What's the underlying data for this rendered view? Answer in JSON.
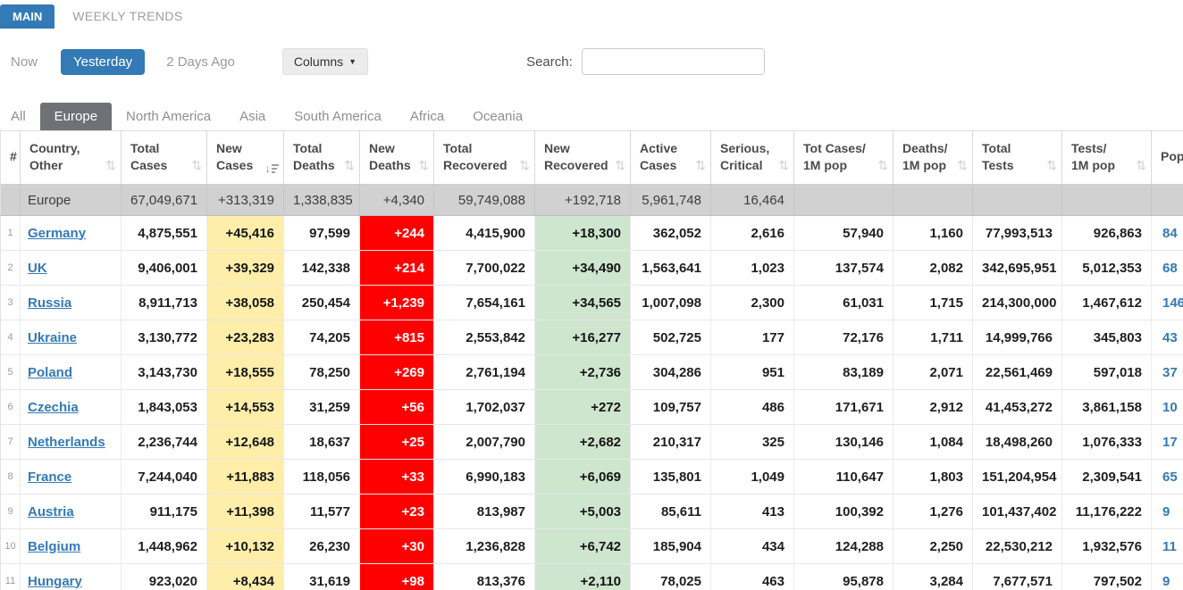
{
  "colors": {
    "accent_blue": "#337ab7",
    "tab_dark": "#6e7276",
    "new_cases_bg": "#ffeeaa",
    "new_deaths_bg": "#ff0000",
    "new_recovered_bg": "#cee5ce",
    "totals_row_bg": "#d1d1d1"
  },
  "main_tabs": {
    "main": "MAIN",
    "weekly": "WEEKLY TRENDS"
  },
  "controls": {
    "now": "Now",
    "yesterday": "Yesterday",
    "two_days_ago": "2 Days Ago",
    "columns_button": "Columns",
    "search_label": "Search:",
    "search_value": "",
    "search_placeholder": ""
  },
  "region_tabs": [
    {
      "label": "All",
      "active": false
    },
    {
      "label": "Europe",
      "active": true
    },
    {
      "label": "North America",
      "active": false
    },
    {
      "label": "Asia",
      "active": false
    },
    {
      "label": "South America",
      "active": false
    },
    {
      "label": "Africa",
      "active": false
    },
    {
      "label": "Oceania",
      "active": false
    }
  ],
  "table": {
    "col_keys": [
      "rank",
      "country",
      "total_cases",
      "new_cases",
      "total_deaths",
      "new_deaths",
      "total_recovered",
      "new_recovered",
      "active_cases",
      "serious_critical",
      "cases_per_1m",
      "deaths_per_1m",
      "total_tests",
      "tests_per_1m",
      "pop"
    ],
    "columns": [
      {
        "l1": "",
        "l2": "#",
        "sort": "none"
      },
      {
        "l1": "Country,",
        "l2": "Other",
        "sort": "both"
      },
      {
        "l1": "Total",
        "l2": "Cases",
        "sort": "both"
      },
      {
        "l1": "New",
        "l2": "Cases",
        "sort": "desc"
      },
      {
        "l1": "Total",
        "l2": "Deaths",
        "sort": "both"
      },
      {
        "l1": "New",
        "l2": "Deaths",
        "sort": "both"
      },
      {
        "l1": "Total",
        "l2": "Recovered",
        "sort": "both"
      },
      {
        "l1": "New",
        "l2": "Recovered",
        "sort": "both"
      },
      {
        "l1": "Active",
        "l2": "Cases",
        "sort": "both"
      },
      {
        "l1": "Serious,",
        "l2": "Critical",
        "sort": "both"
      },
      {
        "l1": "Tot Cases/",
        "l2": "1M pop",
        "sort": "both"
      },
      {
        "l1": "Deaths/",
        "l2": "1M pop",
        "sort": "both"
      },
      {
        "l1": "Total",
        "l2": "Tests",
        "sort": "both"
      },
      {
        "l1": "Tests/",
        "l2": "1M pop",
        "sort": "both"
      },
      {
        "l1": "",
        "l2": "Pop",
        "sort": "none"
      }
    ],
    "totals": {
      "rank": "",
      "country": "Europe",
      "total_cases": "67,049,671",
      "new_cases": "+313,319",
      "total_deaths": "1,338,835",
      "new_deaths": "+4,340",
      "total_recovered": "59,749,088",
      "new_recovered": "+192,718",
      "active_cases": "5,961,748",
      "serious_critical": "16,464",
      "cases_per_1m": "",
      "deaths_per_1m": "",
      "total_tests": "",
      "tests_per_1m": "",
      "pop": ""
    },
    "rows": [
      {
        "rank": "1",
        "country": "Germany",
        "total_cases": "4,875,551",
        "new_cases": "+45,416",
        "total_deaths": "97,599",
        "new_deaths": "+244",
        "total_recovered": "4,415,900",
        "new_recovered": "+18,300",
        "active_cases": "362,052",
        "serious_critical": "2,616",
        "cases_per_1m": "57,940",
        "deaths_per_1m": "1,160",
        "total_tests": "77,993,513",
        "tests_per_1m": "926,863",
        "pop": "84"
      },
      {
        "rank": "2",
        "country": "UK",
        "total_cases": "9,406,001",
        "new_cases": "+39,329",
        "total_deaths": "142,338",
        "new_deaths": "+214",
        "total_recovered": "7,700,022",
        "new_recovered": "+34,490",
        "active_cases": "1,563,641",
        "serious_critical": "1,023",
        "cases_per_1m": "137,574",
        "deaths_per_1m": "2,082",
        "total_tests": "342,695,951",
        "tests_per_1m": "5,012,353",
        "pop": "68"
      },
      {
        "rank": "3",
        "country": "Russia",
        "total_cases": "8,911,713",
        "new_cases": "+38,058",
        "total_deaths": "250,454",
        "new_deaths": "+1,239",
        "total_recovered": "7,654,161",
        "new_recovered": "+34,565",
        "active_cases": "1,007,098",
        "serious_critical": "2,300",
        "cases_per_1m": "61,031",
        "deaths_per_1m": "1,715",
        "total_tests": "214,300,000",
        "tests_per_1m": "1,467,612",
        "pop": "146"
      },
      {
        "rank": "4",
        "country": "Ukraine",
        "total_cases": "3,130,772",
        "new_cases": "+23,283",
        "total_deaths": "74,205",
        "new_deaths": "+815",
        "total_recovered": "2,553,842",
        "new_recovered": "+16,277",
        "active_cases": "502,725",
        "serious_critical": "177",
        "cases_per_1m": "72,176",
        "deaths_per_1m": "1,711",
        "total_tests": "14,999,766",
        "tests_per_1m": "345,803",
        "pop": "43"
      },
      {
        "rank": "5",
        "country": "Poland",
        "total_cases": "3,143,730",
        "new_cases": "+18,555",
        "total_deaths": "78,250",
        "new_deaths": "+269",
        "total_recovered": "2,761,194",
        "new_recovered": "+2,736",
        "active_cases": "304,286",
        "serious_critical": "951",
        "cases_per_1m": "83,189",
        "deaths_per_1m": "2,071",
        "total_tests": "22,561,469",
        "tests_per_1m": "597,018",
        "pop": "37"
      },
      {
        "rank": "6",
        "country": "Czechia",
        "total_cases": "1,843,053",
        "new_cases": "+14,553",
        "total_deaths": "31,259",
        "new_deaths": "+56",
        "total_recovered": "1,702,037",
        "new_recovered": "+272",
        "active_cases": "109,757",
        "serious_critical": "486",
        "cases_per_1m": "171,671",
        "deaths_per_1m": "2,912",
        "total_tests": "41,453,272",
        "tests_per_1m": "3,861,158",
        "pop": "10"
      },
      {
        "rank": "7",
        "country": "Netherlands",
        "total_cases": "2,236,744",
        "new_cases": "+12,648",
        "total_deaths": "18,637",
        "new_deaths": "+25",
        "total_recovered": "2,007,790",
        "new_recovered": "+2,682",
        "active_cases": "210,317",
        "serious_critical": "325",
        "cases_per_1m": "130,146",
        "deaths_per_1m": "1,084",
        "total_tests": "18,498,260",
        "tests_per_1m": "1,076,333",
        "pop": "17"
      },
      {
        "rank": "8",
        "country": "France",
        "total_cases": "7,244,040",
        "new_cases": "+11,883",
        "total_deaths": "118,056",
        "new_deaths": "+33",
        "total_recovered": "6,990,183",
        "new_recovered": "+6,069",
        "active_cases": "135,801",
        "serious_critical": "1,049",
        "cases_per_1m": "110,647",
        "deaths_per_1m": "1,803",
        "total_tests": "151,204,954",
        "tests_per_1m": "2,309,541",
        "pop": "65"
      },
      {
        "rank": "9",
        "country": "Austria",
        "total_cases": "911,175",
        "new_cases": "+11,398",
        "total_deaths": "11,577",
        "new_deaths": "+23",
        "total_recovered": "813,987",
        "new_recovered": "+5,003",
        "active_cases": "85,611",
        "serious_critical": "413",
        "cases_per_1m": "100,392",
        "deaths_per_1m": "1,276",
        "total_tests": "101,437,402",
        "tests_per_1m": "11,176,222",
        "pop": "9"
      },
      {
        "rank": "10",
        "country": "Belgium",
        "total_cases": "1,448,962",
        "new_cases": "+10,132",
        "total_deaths": "26,230",
        "new_deaths": "+30",
        "total_recovered": "1,236,828",
        "new_recovered": "+6,742",
        "active_cases": "185,904",
        "serious_critical": "434",
        "cases_per_1m": "124,288",
        "deaths_per_1m": "2,250",
        "total_tests": "22,530,212",
        "tests_per_1m": "1,932,576",
        "pop": "11"
      },
      {
        "rank": "11",
        "country": "Hungary",
        "total_cases": "923,020",
        "new_cases": "+8,434",
        "total_deaths": "31,619",
        "new_deaths": "+98",
        "total_recovered": "813,376",
        "new_recovered": "+2,110",
        "active_cases": "78,025",
        "serious_critical": "463",
        "cases_per_1m": "95,878",
        "deaths_per_1m": "3,284",
        "total_tests": "7,677,571",
        "tests_per_1m": "797,502",
        "pop": "9"
      }
    ]
  }
}
